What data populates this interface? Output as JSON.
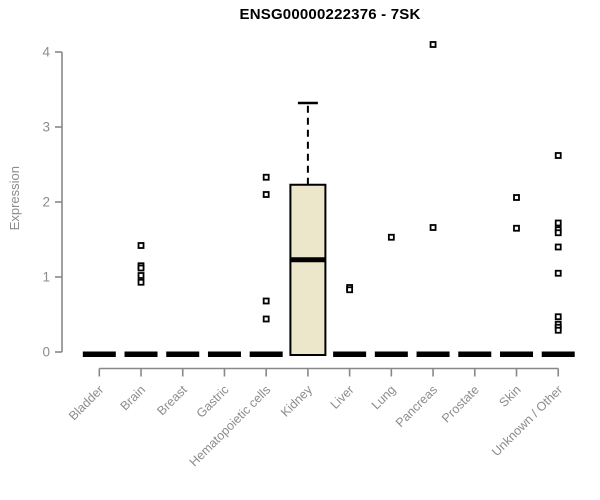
{
  "chart_data": {
    "type": "boxplot",
    "title": "ENSG00000222376 - 7SK",
    "ylabel": "Expression",
    "xlabel": "",
    "yticks": [
      0,
      1,
      2,
      3,
      4
    ],
    "ylim": [
      0,
      4.15
    ],
    "grid": false,
    "legend": "none",
    "colors": {
      "box_fill": "#ece7cb",
      "box_stroke": "#000000",
      "axis": "#888888",
      "tick_label": "#8c8c8c",
      "title": "#000000",
      "point": "#000000"
    },
    "categories": [
      "Bladder",
      "Brain",
      "Breast",
      "Gastric",
      "Hematopoietic cells",
      "Kidney",
      "Liver",
      "Lung",
      "Pancreas",
      "Prostate",
      "Skin",
      "Unknown / Other"
    ],
    "boxes": [
      {
        "category": "Bladder",
        "q1": 0,
        "median": 0,
        "q3": 0,
        "whisker_low": 0,
        "whisker_high": 0,
        "outliers": []
      },
      {
        "category": "Brain",
        "q1": 0,
        "median": 0,
        "q3": 0,
        "whisker_low": 0,
        "whisker_high": 0,
        "outliers": [
          1.42,
          1.15,
          1.12,
          1.02,
          0.93
        ]
      },
      {
        "category": "Breast",
        "q1": 0,
        "median": 0,
        "q3": 0,
        "whisker_low": 0,
        "whisker_high": 0,
        "outliers": []
      },
      {
        "category": "Gastric",
        "q1": 0,
        "median": 0,
        "q3": 0,
        "whisker_low": 0,
        "whisker_high": 0,
        "outliers": []
      },
      {
        "category": "Hematopoietic cells",
        "q1": 0,
        "median": 0,
        "q3": 0,
        "whisker_low": 0,
        "whisker_high": 0,
        "outliers": [
          2.33,
          2.1,
          0.68,
          0.44
        ]
      },
      {
        "category": "Kidney",
        "q1": 0,
        "median": 1.23,
        "q3": 2.23,
        "whisker_low": 0,
        "whisker_high": 3.32,
        "outliers": []
      },
      {
        "category": "Liver",
        "q1": 0,
        "median": 0,
        "q3": 0,
        "whisker_low": 0,
        "whisker_high": 0,
        "outliers": [
          0.86,
          0.83
        ]
      },
      {
        "category": "Lung",
        "q1": 0,
        "median": 0,
        "q3": 0,
        "whisker_low": 0,
        "whisker_high": 0,
        "outliers": [
          1.53
        ]
      },
      {
        "category": "Pancreas",
        "q1": 0,
        "median": 0,
        "q3": 0,
        "whisker_low": 0,
        "whisker_high": 0,
        "outliers": [
          4.1,
          1.66
        ]
      },
      {
        "category": "Prostate",
        "q1": 0,
        "median": 0,
        "q3": 0,
        "whisker_low": 0,
        "whisker_high": 0,
        "outliers": []
      },
      {
        "category": "Skin",
        "q1": 0,
        "median": 0,
        "q3": 0,
        "whisker_low": 0,
        "whisker_high": 0,
        "outliers": [
          2.06,
          1.65
        ]
      },
      {
        "category": "Unknown / Other",
        "q1": 0,
        "median": 0,
        "q3": 0,
        "whisker_low": 0,
        "whisker_high": 0,
        "outliers": [
          2.62,
          1.72,
          1.63,
          1.59,
          1.4,
          1.05,
          0.47,
          0.37,
          0.33,
          0.29
        ]
      }
    ]
  }
}
